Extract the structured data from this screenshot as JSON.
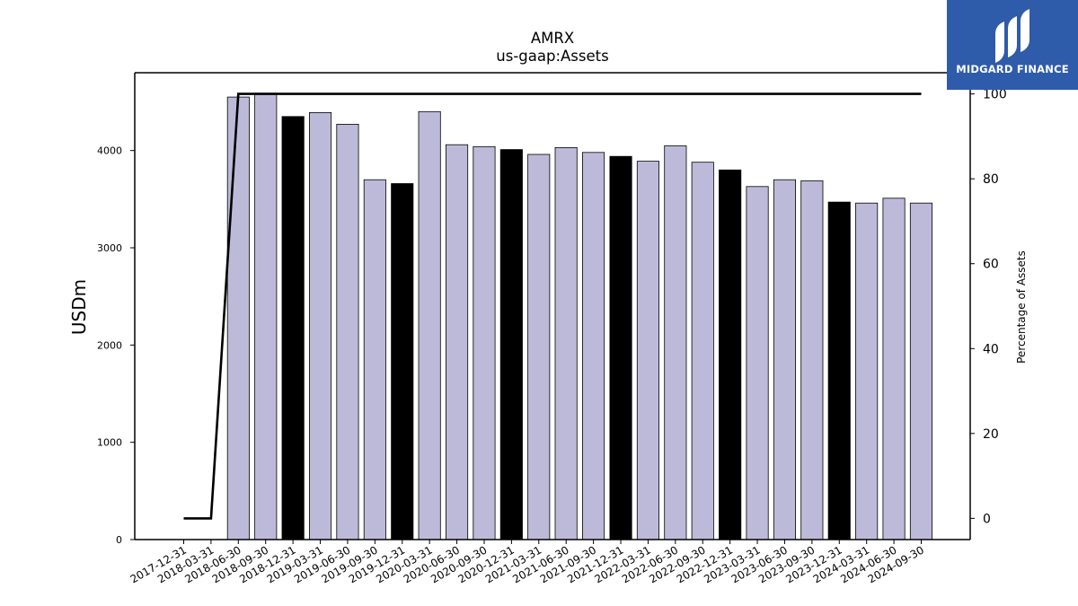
{
  "chart_data": {
    "type": "bar",
    "title": "AMRX",
    "subtitle": "us-gaap:Assets",
    "ylabel": "USDm",
    "y2label": "Percentage of Assets",
    "ylim": [
      0,
      4800
    ],
    "y2lim": [
      -5,
      105
    ],
    "yticks": [
      0,
      1000,
      2000,
      3000,
      4000
    ],
    "y2ticks": [
      0,
      20,
      40,
      60,
      80,
      100
    ],
    "categories": [
      "2017-12-31",
      "2018-03-31",
      "2018-06-30",
      "2018-09-30",
      "2018-12-31",
      "2019-03-31",
      "2019-06-30",
      "2019-09-30",
      "2019-12-31",
      "2020-03-31",
      "2020-06-30",
      "2020-09-30",
      "2020-12-31",
      "2021-03-31",
      "2021-06-30",
      "2021-09-30",
      "2021-12-31",
      "2022-03-31",
      "2022-06-30",
      "2022-09-30",
      "2022-12-31",
      "2023-03-31",
      "2023-06-30",
      "2023-09-30",
      "2023-12-31",
      "2024-03-31",
      "2024-06-30",
      "2024-09-30"
    ],
    "series": [
      {
        "values": [
          null,
          null,
          4550,
          4590,
          4350,
          4390,
          4270,
          3700,
          3660,
          4400,
          4060,
          4040,
          4010,
          3960,
          4030,
          3980,
          3940,
          3890,
          4050,
          3880,
          3800,
          3630,
          3700,
          3690,
          3470,
          3460,
          3510,
          3460
        ],
        "colors": [
          "#bdbad9",
          "#bdbad9",
          "#bdbad9",
          "#bdbad9",
          "#000000",
          "#bdbad9",
          "#bdbad9",
          "#bdbad9",
          "#000000",
          "#bdbad9",
          "#bdbad9",
          "#bdbad9",
          "#000000",
          "#bdbad9",
          "#bdbad9",
          "#bdbad9",
          "#000000",
          "#bdbad9",
          "#bdbad9",
          "#bdbad9",
          "#000000",
          "#bdbad9",
          "#bdbad9",
          "#bdbad9",
          "#000000",
          "#bdbad9",
          "#bdbad9",
          "#bdbad9"
        ]
      },
      {
        "type": "line",
        "axis": "right",
        "color": "#000000",
        "values": [
          0,
          0,
          100,
          100,
          100,
          100,
          100,
          100,
          100,
          100,
          100,
          100,
          100,
          100,
          100,
          100,
          100,
          100,
          100,
          100,
          100,
          100,
          100,
          100,
          100,
          100,
          100,
          100
        ]
      }
    ]
  },
  "logo": {
    "text": "MIDGARD FINANCE",
    "color": "#2f5bab"
  }
}
